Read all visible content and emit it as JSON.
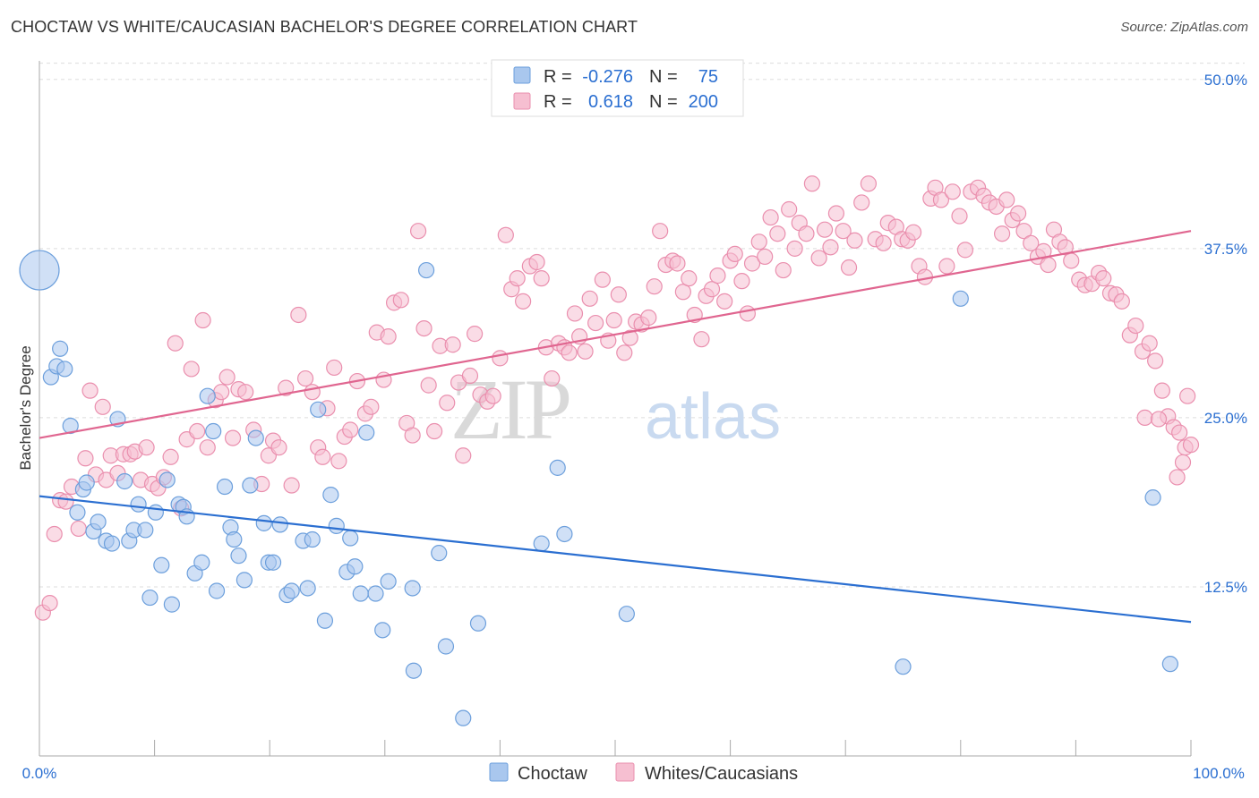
{
  "title": "CHOCTAW VS WHITE/CAUCASIAN BACHELOR'S DEGREE CORRELATION CHART",
  "source": "Source: ZipAtlas.com",
  "watermark": {
    "zip": "ZIP",
    "atlas": "atlas"
  },
  "colors": {
    "blue_fill": "#a9c7ee",
    "blue_stroke": "#6c9fdc",
    "blue_line": "#2b6fd1",
    "pink_fill": "#f6bfd1",
    "pink_stroke": "#ea8fae",
    "pink_line": "#e06690",
    "value_text": "#2b6fd1",
    "grid": "#dddddd"
  },
  "legend": {
    "rows": [
      {
        "r_label": "R =",
        "r_value": "-0.276",
        "n_label": "N =",
        "n_value": "75"
      },
      {
        "r_label": "R =",
        "r_value": "0.618",
        "n_label": "N =",
        "n_value": "200"
      }
    ]
  },
  "bottom_legend": {
    "choctaw": "Choctaw",
    "whites": "Whites/Caucasians"
  },
  "chart_data": {
    "type": "scatter",
    "xlabel": "",
    "ylabel": "Bachelor's Degree",
    "xlim": [
      0,
      100
    ],
    "ylim": [
      0,
      52.5
    ],
    "x_tick_labels": [
      "0.0%",
      "100.0%"
    ],
    "y_ticks": [
      12.5,
      25.0,
      37.5,
      50.0
    ],
    "y_tick_labels": [
      "12.5%",
      "25.0%",
      "37.5%",
      "50.0%"
    ],
    "grid": true,
    "series": [
      {
        "name": "Choctaw",
        "r": -0.276,
        "n": 75,
        "trend": {
          "x": [
            0,
            100
          ],
          "y": [
            19.2,
            9.9
          ]
        },
        "points": [
          [
            0,
            35.9,
            "big"
          ],
          [
            1,
            28.0
          ],
          [
            1.5,
            28.8
          ],
          [
            1.8,
            30.1
          ],
          [
            2.2,
            28.6
          ],
          [
            2.7,
            24.4
          ],
          [
            3.3,
            18.0
          ],
          [
            3.8,
            19.7
          ],
          [
            4.1,
            20.2
          ],
          [
            4.7,
            16.6
          ],
          [
            5.1,
            17.3
          ],
          [
            5.8,
            15.9
          ],
          [
            6.3,
            15.7
          ],
          [
            6.8,
            24.9
          ],
          [
            7.4,
            20.3
          ],
          [
            7.8,
            15.9
          ],
          [
            8.2,
            16.7
          ],
          [
            8.6,
            18.6
          ],
          [
            9.2,
            16.7
          ],
          [
            9.6,
            11.7
          ],
          [
            10.1,
            18.0
          ],
          [
            10.6,
            14.1
          ],
          [
            11.1,
            20.4
          ],
          [
            11.5,
            11.2
          ],
          [
            12.1,
            18.6
          ],
          [
            12.5,
            18.4
          ],
          [
            12.8,
            17.7
          ],
          [
            13.5,
            13.5
          ],
          [
            14.1,
            14.3
          ],
          [
            14.6,
            26.6
          ],
          [
            15.1,
            24.0
          ],
          [
            15.4,
            12.2
          ],
          [
            16.1,
            19.9
          ],
          [
            16.6,
            16.9
          ],
          [
            16.9,
            16.0
          ],
          [
            17.3,
            14.8
          ],
          [
            17.8,
            13.0
          ],
          [
            18.3,
            20.0
          ],
          [
            18.8,
            23.5
          ],
          [
            19.5,
            17.2
          ],
          [
            19.9,
            14.3
          ],
          [
            20.3,
            14.3
          ],
          [
            20.9,
            17.1
          ],
          [
            21.5,
            11.9
          ],
          [
            21.9,
            12.2
          ],
          [
            22.9,
            15.9
          ],
          [
            23.3,
            12.4
          ],
          [
            23.7,
            16.0
          ],
          [
            24.2,
            25.6
          ],
          [
            24.8,
            10.0
          ],
          [
            25.3,
            19.3
          ],
          [
            25.8,
            17.0
          ],
          [
            26.7,
            13.6
          ],
          [
            27.0,
            16.1
          ],
          [
            27.4,
            14.0
          ],
          [
            27.9,
            12.0
          ],
          [
            28.4,
            23.9
          ],
          [
            29.2,
            12.0
          ],
          [
            29.8,
            9.3
          ],
          [
            30.3,
            12.9
          ],
          [
            32.4,
            12.4
          ],
          [
            32.5,
            6.3
          ],
          [
            33.6,
            35.9
          ],
          [
            34.7,
            15.0
          ],
          [
            35.3,
            8.1
          ],
          [
            36.8,
            2.8
          ],
          [
            38.1,
            9.8
          ],
          [
            43.6,
            15.7
          ],
          [
            45.0,
            21.3
          ],
          [
            45.6,
            16.4
          ],
          [
            51.0,
            10.5
          ],
          [
            75.0,
            6.6
          ],
          [
            80.0,
            33.8
          ],
          [
            96.7,
            19.1
          ],
          [
            98.2,
            6.8
          ]
        ]
      },
      {
        "name": "Whites/Caucasians",
        "r": 0.618,
        "n": 200,
        "trend": {
          "x": [
            0,
            100
          ],
          "y": [
            23.5,
            38.8
          ]
        },
        "points": [
          [
            0.3,
            10.6
          ],
          [
            0.9,
            11.3
          ],
          [
            1.3,
            16.4
          ],
          [
            1.8,
            18.9
          ],
          [
            2.3,
            18.8
          ],
          [
            2.8,
            19.9
          ],
          [
            3.4,
            16.8
          ],
          [
            4.0,
            22.0
          ],
          [
            4.4,
            27.0
          ],
          [
            4.9,
            20.8
          ],
          [
            5.5,
            25.8
          ],
          [
            5.8,
            20.4
          ],
          [
            6.2,
            22.2
          ],
          [
            6.8,
            20.9
          ],
          [
            7.3,
            22.3
          ],
          [
            7.9,
            22.3
          ],
          [
            8.3,
            22.5
          ],
          [
            8.8,
            20.4
          ],
          [
            9.3,
            22.8
          ],
          [
            9.8,
            20.1
          ],
          [
            10.3,
            19.8
          ],
          [
            10.8,
            20.6
          ],
          [
            11.4,
            22.1
          ],
          [
            11.8,
            30.5
          ],
          [
            12.3,
            18.3
          ],
          [
            12.8,
            23.4
          ],
          [
            13.2,
            28.6
          ],
          [
            13.7,
            24.0
          ],
          [
            14.2,
            32.2
          ],
          [
            14.6,
            22.8
          ],
          [
            15.3,
            26.3
          ],
          [
            15.8,
            26.9
          ],
          [
            16.3,
            28.0
          ],
          [
            16.8,
            23.5
          ],
          [
            17.3,
            27.1
          ],
          [
            17.9,
            26.9
          ],
          [
            18.6,
            24.1
          ],
          [
            19.3,
            20.1
          ],
          [
            19.9,
            22.2
          ],
          [
            20.3,
            23.3
          ],
          [
            20.8,
            22.8
          ],
          [
            21.4,
            27.2
          ],
          [
            21.9,
            20.0
          ],
          [
            22.5,
            32.6
          ],
          [
            23.1,
            27.9
          ],
          [
            23.7,
            26.9
          ],
          [
            24.2,
            22.8
          ],
          [
            24.6,
            22.1
          ],
          [
            25.0,
            25.7
          ],
          [
            25.6,
            28.7
          ],
          [
            26.0,
            21.8
          ],
          [
            26.5,
            23.6
          ],
          [
            27.0,
            24.1
          ],
          [
            27.6,
            27.7
          ],
          [
            28.3,
            25.3
          ],
          [
            28.8,
            25.8
          ],
          [
            29.3,
            31.3
          ],
          [
            29.9,
            27.8
          ],
          [
            30.3,
            31.0
          ],
          [
            30.8,
            33.5
          ],
          [
            31.4,
            33.7
          ],
          [
            31.9,
            24.6
          ],
          [
            32.4,
            23.7
          ],
          [
            32.9,
            38.8
          ],
          [
            33.4,
            31.6
          ],
          [
            33.8,
            27.4
          ],
          [
            34.3,
            24.0
          ],
          [
            34.8,
            30.3
          ],
          [
            35.4,
            26.1
          ],
          [
            35.9,
            30.4
          ],
          [
            36.4,
            27.6
          ],
          [
            36.8,
            22.2
          ],
          [
            37.4,
            28.1
          ],
          [
            37.8,
            31.2
          ],
          [
            38.3,
            26.7
          ],
          [
            38.9,
            26.2
          ],
          [
            39.4,
            26.6
          ],
          [
            40.0,
            29.4
          ],
          [
            40.5,
            38.5
          ],
          [
            41.0,
            34.5
          ],
          [
            41.5,
            35.3
          ],
          [
            42.0,
            33.6
          ],
          [
            42.6,
            36.2
          ],
          [
            43.2,
            36.5
          ],
          [
            43.6,
            35.3
          ],
          [
            44.0,
            30.2
          ],
          [
            44.5,
            27.9
          ],
          [
            45.1,
            30.5
          ],
          [
            45.6,
            30.2
          ],
          [
            46.0,
            29.8
          ],
          [
            46.5,
            32.7
          ],
          [
            46.9,
            31.0
          ],
          [
            47.4,
            29.9
          ],
          [
            47.8,
            33.8
          ],
          [
            48.3,
            32.0
          ],
          [
            48.9,
            35.2
          ],
          [
            49.4,
            30.7
          ],
          [
            49.9,
            32.2
          ],
          [
            50.3,
            34.1
          ],
          [
            50.8,
            29.8
          ],
          [
            51.3,
            30.9
          ],
          [
            51.8,
            32.1
          ],
          [
            52.3,
            31.9
          ],
          [
            52.9,
            32.4
          ],
          [
            53.4,
            34.7
          ],
          [
            53.9,
            38.8
          ],
          [
            54.4,
            36.3
          ],
          [
            55.0,
            36.6
          ],
          [
            55.4,
            36.4
          ],
          [
            55.9,
            34.3
          ],
          [
            56.4,
            35.3
          ],
          [
            56.9,
            32.6
          ],
          [
            57.5,
            30.8
          ],
          [
            57.9,
            34.0
          ],
          [
            58.4,
            34.5
          ],
          [
            58.9,
            35.5
          ],
          [
            59.5,
            33.6
          ],
          [
            60.0,
            36.6
          ],
          [
            60.4,
            37.1
          ],
          [
            61.0,
            35.1
          ],
          [
            61.5,
            32.7
          ],
          [
            61.9,
            36.4
          ],
          [
            62.5,
            38.0
          ],
          [
            63.0,
            36.9
          ],
          [
            63.5,
            39.8
          ],
          [
            64.1,
            38.6
          ],
          [
            64.6,
            35.9
          ],
          [
            65.1,
            40.4
          ],
          [
            65.6,
            37.5
          ],
          [
            66.0,
            39.4
          ],
          [
            66.6,
            38.6
          ],
          [
            67.1,
            42.3
          ],
          [
            67.7,
            36.8
          ],
          [
            68.2,
            38.9
          ],
          [
            68.7,
            37.6
          ],
          [
            69.2,
            40.1
          ],
          [
            69.8,
            38.8
          ],
          [
            70.3,
            36.1
          ],
          [
            70.8,
            38.1
          ],
          [
            71.4,
            40.9
          ],
          [
            72.0,
            42.3
          ],
          [
            72.6,
            38.2
          ],
          [
            73.3,
            37.9
          ],
          [
            73.7,
            39.4
          ],
          [
            74.4,
            39.1
          ],
          [
            74.9,
            38.2
          ],
          [
            75.4,
            38.1
          ],
          [
            75.9,
            38.7
          ],
          [
            76.4,
            36.2
          ],
          [
            76.9,
            35.4
          ],
          [
            77.4,
            41.2
          ],
          [
            77.8,
            42.0
          ],
          [
            78.3,
            41.1
          ],
          [
            78.8,
            36.2
          ],
          [
            79.3,
            41.7
          ],
          [
            79.9,
            39.9
          ],
          [
            80.4,
            37.4
          ],
          [
            80.9,
            41.7
          ],
          [
            81.5,
            42.0
          ],
          [
            82.0,
            41.4
          ],
          [
            82.5,
            40.9
          ],
          [
            83.1,
            40.6
          ],
          [
            83.6,
            38.6
          ],
          [
            84.0,
            41.1
          ],
          [
            84.5,
            39.6
          ],
          [
            85.0,
            40.1
          ],
          [
            85.5,
            38.8
          ],
          [
            86.1,
            37.9
          ],
          [
            86.7,
            36.9
          ],
          [
            87.2,
            37.3
          ],
          [
            87.6,
            36.3
          ],
          [
            88.1,
            38.9
          ],
          [
            88.6,
            38.0
          ],
          [
            89.1,
            37.6
          ],
          [
            89.6,
            36.6
          ],
          [
            90.3,
            35.2
          ],
          [
            90.8,
            34.8
          ],
          [
            91.4,
            34.9
          ],
          [
            92.0,
            35.7
          ],
          [
            92.4,
            35.3
          ],
          [
            93.0,
            34.2
          ],
          [
            93.5,
            34.1
          ],
          [
            94.0,
            33.6
          ],
          [
            94.7,
            31.1
          ],
          [
            95.2,
            31.8
          ],
          [
            95.8,
            29.9
          ],
          [
            96.4,
            30.5
          ],
          [
            96.9,
            29.2
          ],
          [
            97.5,
            27.0
          ],
          [
            98.0,
            25.1
          ],
          [
            98.5,
            24.3
          ],
          [
            99.0,
            23.9
          ],
          [
            99.5,
            22.8
          ],
          [
            100.0,
            23.0
          ],
          [
            99.3,
            21.7
          ],
          [
            98.8,
            20.6
          ],
          [
            96.0,
            25.0
          ],
          [
            97.2,
            24.9
          ],
          [
            99.7,
            26.6
          ]
        ]
      }
    ]
  }
}
